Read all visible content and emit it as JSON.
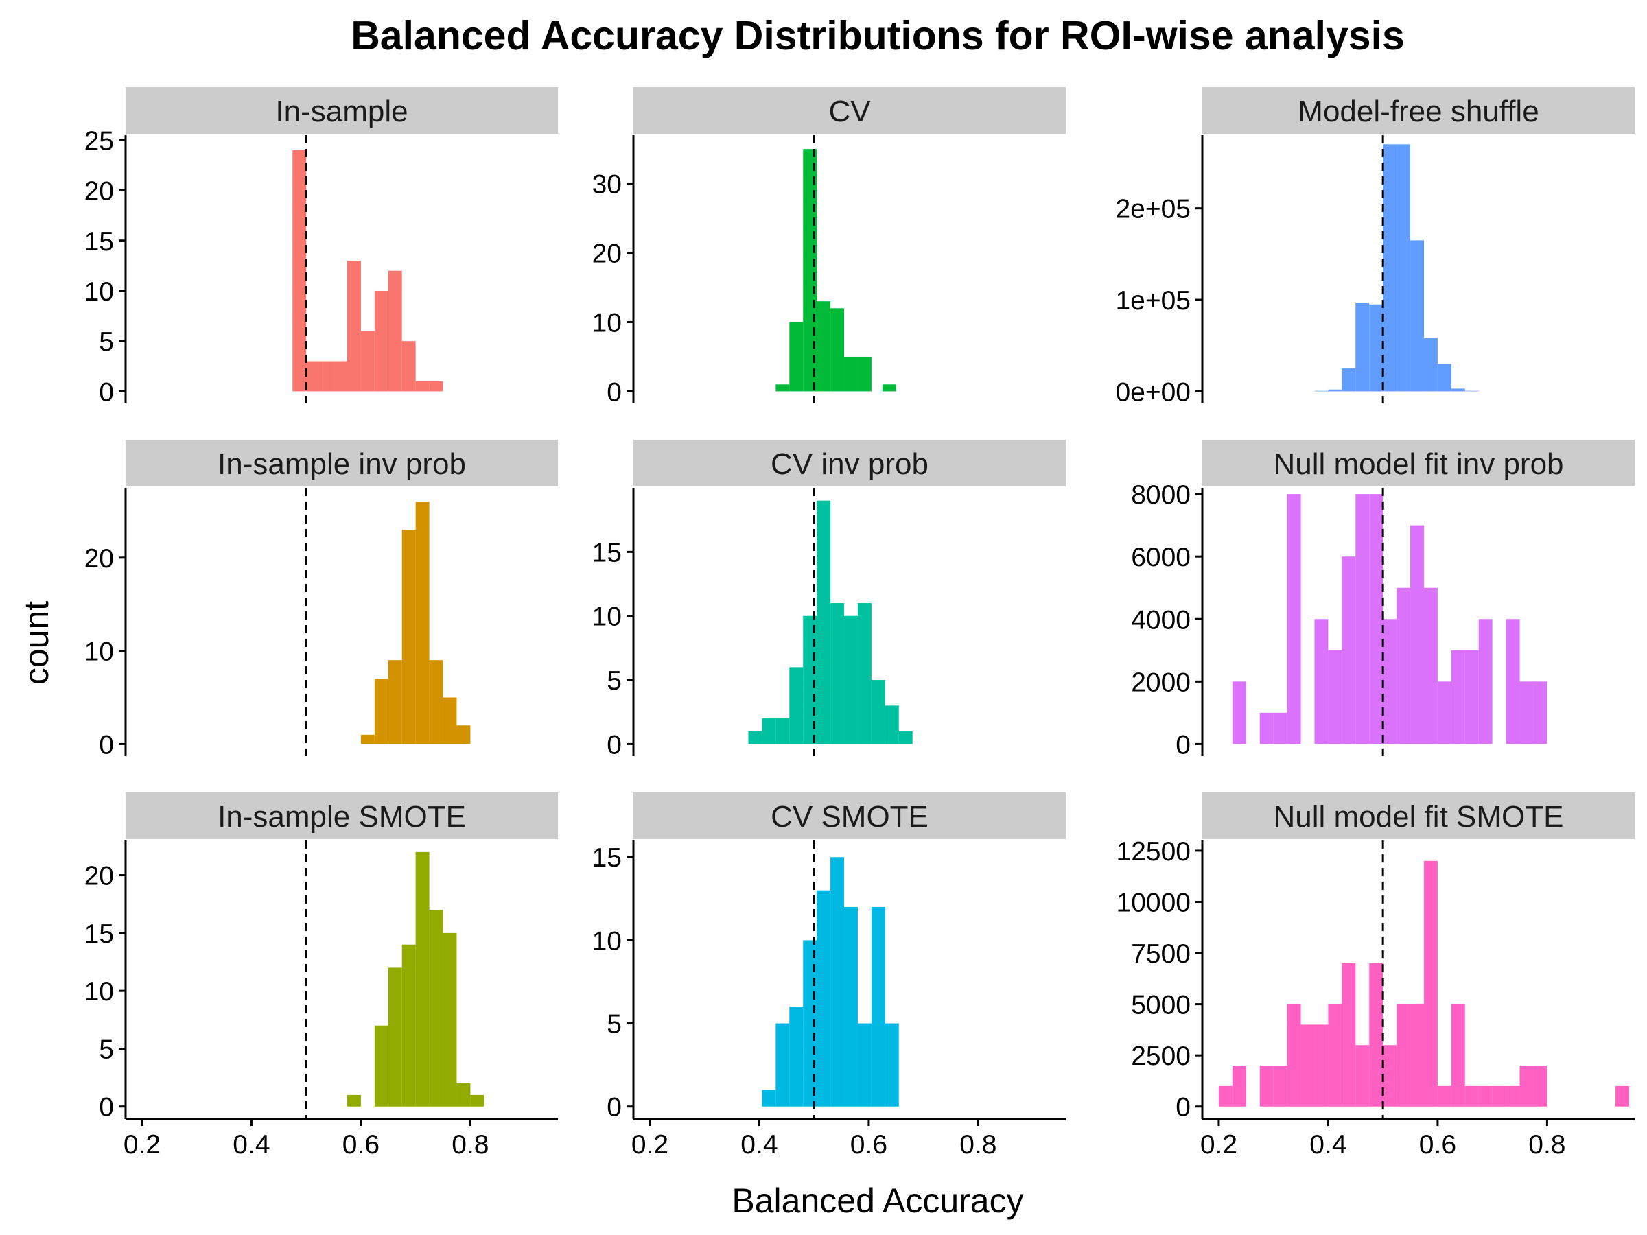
{
  "title": "Balanced Accuracy Distributions for ROI-wise analysis",
  "xlabel": "Balanced Accuracy",
  "ylabel": "count",
  "chart_data": {
    "type": "histogram",
    "layout": "facet grid 3x3",
    "title": "Balanced Accuracy Distributions for ROI-wise analysis",
    "xlabel": "Balanced Accuracy",
    "ylabel": "count",
    "xlim": [
      0.17,
      0.96
    ],
    "xticks": [
      0.2,
      0.4,
      0.6,
      0.8
    ],
    "xtick_labels": [
      "0.2",
      "0.4",
      "0.6",
      "0.8"
    ],
    "reference_line": {
      "x": 0.5,
      "style": "dashed"
    },
    "grid": false,
    "legend": "none",
    "panels": [
      {
        "label": "In-sample",
        "color": "#F8766D",
        "ylim": [
          0,
          25.5
        ],
        "yticks": [
          0,
          5,
          10,
          15,
          20,
          25
        ],
        "ytick_labels": [
          "0",
          "5",
          "10",
          "15",
          "20",
          "25"
        ],
        "bins": [
          [
            0.475,
            0.5,
            24
          ],
          [
            0.5,
            0.525,
            3
          ],
          [
            0.525,
            0.55,
            3
          ],
          [
            0.55,
            0.575,
            3
          ],
          [
            0.575,
            0.6,
            13
          ],
          [
            0.6,
            0.625,
            6
          ],
          [
            0.625,
            0.65,
            10
          ],
          [
            0.65,
            0.675,
            12
          ],
          [
            0.675,
            0.7,
            5
          ],
          [
            0.7,
            0.725,
            1
          ],
          [
            0.725,
            0.75,
            1
          ]
        ]
      },
      {
        "label": "CV",
        "color": "#00BA38",
        "ylim": [
          0,
          37
        ],
        "yticks": [
          0,
          10,
          20,
          30
        ],
        "ytick_labels": [
          "0",
          "10",
          "20",
          "30"
        ],
        "bins": [
          [
            0.43,
            0.455,
            1
          ],
          [
            0.455,
            0.48,
            10
          ],
          [
            0.48,
            0.505,
            35
          ],
          [
            0.505,
            0.53,
            13
          ],
          [
            0.53,
            0.555,
            12
          ],
          [
            0.555,
            0.58,
            5
          ],
          [
            0.58,
            0.605,
            5
          ],
          [
            0.625,
            0.65,
            1
          ]
        ]
      },
      {
        "label": "Model-free shuffle",
        "color": "#619CFF",
        "ylim": [
          0,
          280000
        ],
        "yticks": [
          0,
          100000,
          200000
        ],
        "ytick_labels": [
          "0e+00",
          "1e+05",
          "2e+05"
        ],
        "bins": [
          [
            0.375,
            0.4,
            500
          ],
          [
            0.4,
            0.425,
            2000
          ],
          [
            0.425,
            0.45,
            25000
          ],
          [
            0.45,
            0.475,
            97000
          ],
          [
            0.475,
            0.5,
            95000
          ],
          [
            0.5,
            0.525,
            270000
          ],
          [
            0.525,
            0.55,
            270000
          ],
          [
            0.55,
            0.575,
            165000
          ],
          [
            0.575,
            0.6,
            58000
          ],
          [
            0.6,
            0.625,
            30000
          ],
          [
            0.625,
            0.65,
            3000
          ],
          [
            0.65,
            0.675,
            500
          ]
        ]
      },
      {
        "label": "In-sample inv prob",
        "color": "#D39200",
        "ylim": [
          0,
          27.5
        ],
        "yticks": [
          0,
          10,
          20
        ],
        "ytick_labels": [
          "0",
          "10",
          "20"
        ],
        "bins": [
          [
            0.6,
            0.625,
            1
          ],
          [
            0.625,
            0.65,
            7
          ],
          [
            0.65,
            0.675,
            9
          ],
          [
            0.675,
            0.7,
            23
          ],
          [
            0.7,
            0.725,
            26
          ],
          [
            0.725,
            0.75,
            9
          ],
          [
            0.75,
            0.775,
            5
          ],
          [
            0.775,
            0.8,
            2
          ]
        ]
      },
      {
        "label": "CV inv prob",
        "color": "#00C19F",
        "ylim": [
          0,
          20
        ],
        "yticks": [
          0,
          5,
          10,
          15
        ],
        "ytick_labels": [
          "0",
          "5",
          "10",
          "15"
        ],
        "bins": [
          [
            0.38,
            0.405,
            1
          ],
          [
            0.405,
            0.43,
            2
          ],
          [
            0.43,
            0.455,
            2
          ],
          [
            0.455,
            0.48,
            6
          ],
          [
            0.48,
            0.505,
            10
          ],
          [
            0.505,
            0.53,
            19
          ],
          [
            0.53,
            0.555,
            11
          ],
          [
            0.555,
            0.58,
            10
          ],
          [
            0.58,
            0.605,
            11
          ],
          [
            0.605,
            0.63,
            5
          ],
          [
            0.63,
            0.655,
            3
          ],
          [
            0.655,
            0.68,
            1
          ]
        ]
      },
      {
        "label": "Null model fit inv prob",
        "color": "#DB72FB",
        "ylim": [
          0,
          8200
        ],
        "yticks": [
          0,
          2000,
          4000,
          6000,
          8000
        ],
        "ytick_labels": [
          "0",
          "2000",
          "4000",
          "6000",
          "8000"
        ],
        "bins": [
          [
            0.225,
            0.25,
            2000
          ],
          [
            0.275,
            0.3,
            1000
          ],
          [
            0.3,
            0.325,
            1000
          ],
          [
            0.325,
            0.35,
            8000
          ],
          [
            0.375,
            0.4,
            4000
          ],
          [
            0.4,
            0.425,
            3000
          ],
          [
            0.425,
            0.45,
            6000
          ],
          [
            0.45,
            0.475,
            8000
          ],
          [
            0.475,
            0.5,
            8000
          ],
          [
            0.5,
            0.525,
            4000
          ],
          [
            0.525,
            0.55,
            5000
          ],
          [
            0.55,
            0.575,
            7000
          ],
          [
            0.575,
            0.6,
            5000
          ],
          [
            0.6,
            0.625,
            2000
          ],
          [
            0.625,
            0.65,
            3000
          ],
          [
            0.65,
            0.675,
            3000
          ],
          [
            0.675,
            0.7,
            4000
          ],
          [
            0.725,
            0.75,
            4000
          ],
          [
            0.75,
            0.775,
            2000
          ],
          [
            0.775,
            0.8,
            2000
          ]
        ]
      },
      {
        "label": "In-sample SMOTE",
        "color": "#93AA00",
        "ylim": [
          0,
          23
        ],
        "yticks": [
          0,
          5,
          10,
          15,
          20
        ],
        "ytick_labels": [
          "0",
          "5",
          "10",
          "15",
          "20"
        ],
        "bins": [
          [
            0.575,
            0.6,
            1
          ],
          [
            0.625,
            0.65,
            7
          ],
          [
            0.65,
            0.675,
            12
          ],
          [
            0.675,
            0.7,
            14
          ],
          [
            0.7,
            0.725,
            22
          ],
          [
            0.725,
            0.75,
            17
          ],
          [
            0.75,
            0.775,
            15
          ],
          [
            0.775,
            0.8,
            2
          ],
          [
            0.8,
            0.825,
            1
          ]
        ]
      },
      {
        "label": "CV SMOTE",
        "color": "#00B9E3",
        "ylim": [
          0,
          16
        ],
        "yticks": [
          0,
          5,
          10,
          15
        ],
        "ytick_labels": [
          "0",
          "5",
          "10",
          "15"
        ],
        "bins": [
          [
            0.405,
            0.43,
            1
          ],
          [
            0.43,
            0.455,
            5
          ],
          [
            0.455,
            0.48,
            6
          ],
          [
            0.48,
            0.505,
            10
          ],
          [
            0.505,
            0.53,
            13
          ],
          [
            0.53,
            0.555,
            15
          ],
          [
            0.555,
            0.58,
            12
          ],
          [
            0.58,
            0.605,
            5
          ],
          [
            0.605,
            0.63,
            12
          ],
          [
            0.63,
            0.655,
            5
          ]
        ]
      },
      {
        "label": "Null model fit SMOTE",
        "color": "#FF61C3",
        "ylim": [
          0,
          13000
        ],
        "yticks": [
          0,
          2500,
          5000,
          7500,
          10000,
          12500
        ],
        "ytick_labels": [
          "0",
          "2500",
          "5000",
          "7500",
          "10000",
          "12500"
        ],
        "bins": [
          [
            0.2,
            0.225,
            1000
          ],
          [
            0.225,
            0.25,
            2000
          ],
          [
            0.275,
            0.3,
            2000
          ],
          [
            0.3,
            0.325,
            2000
          ],
          [
            0.325,
            0.35,
            5000
          ],
          [
            0.35,
            0.375,
            4000
          ],
          [
            0.375,
            0.4,
            4000
          ],
          [
            0.4,
            0.425,
            5000
          ],
          [
            0.425,
            0.45,
            7000
          ],
          [
            0.45,
            0.475,
            3000
          ],
          [
            0.475,
            0.5,
            7000
          ],
          [
            0.5,
            0.525,
            3000
          ],
          [
            0.525,
            0.55,
            5000
          ],
          [
            0.55,
            0.575,
            5000
          ],
          [
            0.575,
            0.6,
            12000
          ],
          [
            0.6,
            0.625,
            1000
          ],
          [
            0.625,
            0.65,
            5000
          ],
          [
            0.65,
            0.675,
            1000
          ],
          [
            0.675,
            0.7,
            1000
          ],
          [
            0.7,
            0.725,
            1000
          ],
          [
            0.725,
            0.75,
            1000
          ],
          [
            0.75,
            0.775,
            2000
          ],
          [
            0.775,
            0.8,
            2000
          ],
          [
            0.925,
            0.95,
            1000
          ]
        ]
      }
    ]
  }
}
